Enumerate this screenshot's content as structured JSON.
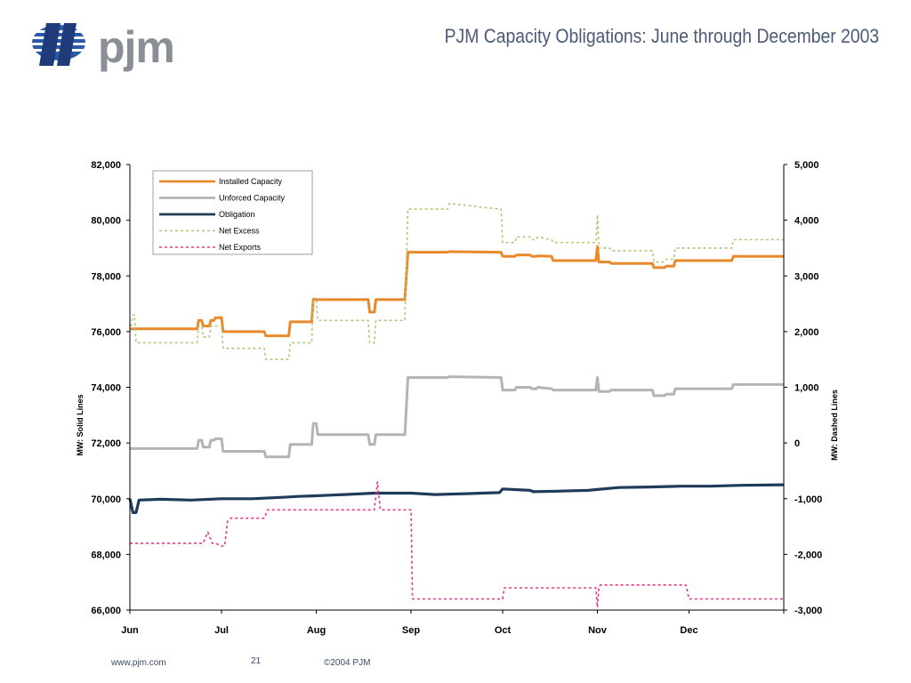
{
  "header": {
    "logo_text": "pjm",
    "title": "PJM Capacity Obligations: June through December 2003"
  },
  "footer": {
    "url": "www.pjm.com",
    "page_number": "21",
    "copyright": "©2004 PJM"
  },
  "colors": {
    "installed": "#e8892b",
    "unforced": "#b4b4b4",
    "obligation": "#1f3b5a",
    "net_excess": "#b8c47a",
    "net_exports": "#e8358c",
    "title": "#4a5a78",
    "logo_grey": "#8a8f96",
    "logo_blue": "#2a5aa8"
  },
  "chart_data": {
    "type": "line",
    "xlabel": "",
    "ylabel_left": "MW: Solid Lines",
    "ylabel_right": "MW: Dashed Lines",
    "xlim": [
      0,
      214
    ],
    "ylim_left": [
      66000,
      82000
    ],
    "ylim_right": [
      -3000,
      5000
    ],
    "yticks_left": [
      "82,000",
      "80,000",
      "78,000",
      "76,000",
      "74,000",
      "72,000",
      "70,000",
      "68,000",
      "66,000"
    ],
    "yticks_left_values": [
      82000,
      80000,
      78000,
      76000,
      74000,
      72000,
      70000,
      68000,
      66000
    ],
    "yticks_right": [
      "5,000",
      "4,000",
      "3,000",
      "2,000",
      "1,000",
      "0",
      "-1,000",
      "-2,000",
      "-3,000"
    ],
    "yticks_right_values": [
      5000,
      4000,
      3000,
      2000,
      1000,
      0,
      -1000,
      -2000,
      -3000
    ],
    "xticks": [
      "Jun",
      "Jul",
      "Aug",
      "Sep",
      "Oct",
      "Nov",
      "Dec"
    ],
    "xticks_values": [
      0,
      30,
      61,
      92,
      122,
      153,
      183
    ],
    "grid": false,
    "legend_position": "top-left",
    "series": [
      {
        "name": "Installed Capacity",
        "axis": "left",
        "style": "solid",
        "color_key": "installed",
        "x": [
          0,
          22,
          22.5,
          23.5,
          24,
          26,
          26.5,
          27.5,
          28,
          30,
          30.5,
          32,
          32.5,
          44,
          44.5,
          52,
          52.5,
          58,
          58.5,
          59.5,
          60,
          61,
          61.5,
          78,
          78.5,
          80,
          80.5,
          90,
          91,
          92,
          92.5,
          104,
          104.5,
          121,
          121.5,
          122,
          122.5,
          126,
          126.5,
          131,
          131.5,
          133,
          133.5,
          138,
          138.5,
          152,
          152.5,
          153,
          153.5,
          157,
          157.5,
          171,
          171.5,
          175,
          175.5,
          178,
          178.5,
          184,
          184.5,
          197,
          197.5,
          214
        ],
        "y": [
          76100,
          76100,
          76400,
          76400,
          76200,
          76200,
          76400,
          76400,
          76500,
          76500,
          76000,
          76000,
          76000,
          76000,
          75850,
          75850,
          76350,
          76350,
          76350,
          76350,
          77150,
          77150,
          77150,
          77150,
          76700,
          76700,
          77150,
          77150,
          78850,
          78850,
          78850,
          78850,
          78870,
          78850,
          78850,
          78700,
          78700,
          78700,
          78750,
          78750,
          78700,
          78700,
          78720,
          78700,
          78550,
          78550,
          78550,
          79050,
          78500,
          78500,
          78450,
          78450,
          78300,
          78300,
          78350,
          78350,
          78550,
          78550,
          78550,
          78550,
          78700,
          78700
        ]
      },
      {
        "name": "Unforced Capacity",
        "axis": "left",
        "style": "solid",
        "color_key": "unforced",
        "x": [
          0,
          22,
          22.5,
          23.5,
          24,
          26,
          26.5,
          27.5,
          28,
          30,
          30.5,
          32,
          32.5,
          44,
          44.5,
          52,
          52.5,
          58,
          58.5,
          59.5,
          60,
          61,
          61.5,
          78,
          78.5,
          80,
          80.5,
          90,
          91,
          92,
          92.5,
          104,
          104.5,
          121,
          121.5,
          122,
          122.5,
          126,
          126.5,
          131,
          131.5,
          133,
          133.5,
          138,
          138.5,
          152,
          152.5,
          153,
          153.5,
          157,
          157.5,
          171,
          171.5,
          175,
          175.5,
          178,
          178.5,
          184,
          184.5,
          197,
          197.5,
          214
        ],
        "y": [
          71800,
          71800,
          72100,
          72100,
          71850,
          71850,
          72100,
          72100,
          72150,
          72150,
          71700,
          71700,
          71700,
          71700,
          71500,
          71500,
          71950,
          71950,
          71950,
          71950,
          72700,
          72700,
          72300,
          72300,
          71950,
          71950,
          72300,
          72300,
          74350,
          74350,
          74350,
          74350,
          74380,
          74350,
          74350,
          73900,
          73900,
          73900,
          74000,
          74000,
          73950,
          73950,
          74000,
          73950,
          73900,
          73900,
          73900,
          74350,
          73850,
          73850,
          73900,
          73900,
          73700,
          73700,
          73750,
          73750,
          73950,
          73950,
          73950,
          73950,
          74100,
          74100
        ]
      },
      {
        "name": "Obligation",
        "axis": "left",
        "style": "solid",
        "color_key": "obligation",
        "x": [
          0,
          1,
          2,
          3,
          10,
          20,
          30,
          40,
          50,
          55,
          60,
          70,
          80,
          92,
          100,
          110,
          121,
          122,
          131,
          132,
          140,
          150,
          153,
          160,
          170,
          180,
          190,
          200,
          214
        ],
        "y": [
          70000,
          69500,
          69500,
          69950,
          69980,
          69950,
          70000,
          70000,
          70050,
          70080,
          70100,
          70150,
          70200,
          70200,
          70150,
          70180,
          70220,
          70350,
          70300,
          70250,
          70270,
          70300,
          70330,
          70400,
          70420,
          70450,
          70450,
          70480,
          70500
        ]
      },
      {
        "name": "Net Excess",
        "axis": "right",
        "style": "dashed",
        "color_key": "net_excess",
        "x": [
          0,
          1,
          1.5,
          2,
          2.5,
          22,
          22.5,
          23.5,
          24,
          26,
          26.5,
          27.5,
          28,
          30,
          30.5,
          32,
          32.5,
          44,
          44.5,
          52,
          52.5,
          58,
          58.5,
          59.5,
          60,
          61,
          61.5,
          78,
          78.5,
          80,
          80.5,
          90,
          91,
          92,
          92.5,
          104,
          104.5,
          121,
          121.5,
          122,
          122.5,
          126,
          126.5,
          131,
          131.5,
          133,
          133.5,
          138,
          138.5,
          152,
          152.5,
          153,
          153.5,
          157,
          157.5,
          171,
          171.5,
          175,
          175.5,
          178,
          178.5,
          184,
          184.5,
          197,
          197.5,
          214
        ],
        "y": [
          2000,
          2300,
          2300,
          1800,
          1800,
          1800,
          2100,
          2100,
          1900,
          1900,
          2100,
          2100,
          2100,
          2100,
          1700,
          1700,
          1700,
          1700,
          1500,
          1500,
          1800,
          1800,
          1800,
          1800,
          2600,
          2600,
          2200,
          2200,
          1800,
          1800,
          2200,
          2200,
          4200,
          4200,
          4200,
          4200,
          4300,
          4200,
          4200,
          3600,
          3600,
          3600,
          3700,
          3700,
          3650,
          3650,
          3700,
          3650,
          3600,
          3600,
          3600,
          4100,
          3500,
          3500,
          3450,
          3450,
          3250,
          3250,
          3300,
          3300,
          3500,
          3500,
          3500,
          3500,
          3650,
          3650
        ]
      },
      {
        "name": "Net Exports",
        "axis": "right",
        "style": "dashed",
        "color_key": "net_exports",
        "x": [
          0,
          24,
          25.5,
          27,
          28,
          30,
          31,
          32,
          33,
          44,
          45,
          80,
          81,
          82,
          89,
          90,
          92,
          92.5,
          121,
          122,
          122.5,
          152,
          152.5,
          153,
          153.5,
          154,
          154.5,
          182,
          183,
          183.5,
          214
        ],
        "y": [
          -1800,
          -1800,
          -1600,
          -1800,
          -1800,
          -1850,
          -1850,
          -1400,
          -1350,
          -1350,
          -1200,
          -1200,
          -700,
          -1200,
          -1200,
          -1200,
          -1200,
          -2800,
          -2800,
          -2800,
          -2600,
          -2600,
          -2600,
          -2950,
          -2600,
          -2550,
          -2550,
          -2550,
          -2800,
          -2800,
          -2800
        ]
      }
    ]
  }
}
